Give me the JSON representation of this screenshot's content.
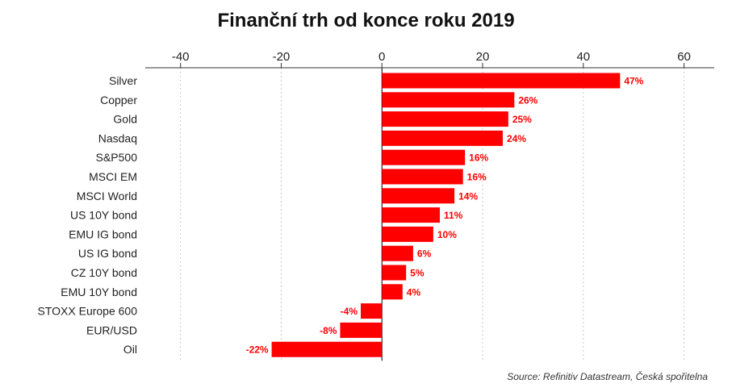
{
  "title": "Finanční trh od konce roku 2019",
  "source": "Source: Refinitiv Datastream, Česká spořitelna",
  "chart_data": {
    "type": "bar",
    "orientation": "horizontal",
    "categories": [
      "Silver",
      "Copper",
      "Gold",
      "Nasdaq",
      "S&P500",
      "MSCI EM",
      "MSCI World",
      "US 10Y bond",
      "EMU IG bond",
      "US IG bond",
      "CZ 10Y bond",
      "EMU 10Y bond",
      "STOXX Europe 600",
      "EUR/USD",
      "Oil"
    ],
    "values": [
      47.3,
      26.3,
      25.1,
      24.0,
      16.5,
      16.1,
      14.4,
      11.5,
      10.2,
      6.2,
      4.8,
      4.1,
      -4.2,
      -8.3,
      -21.9
    ],
    "data_labels": [
      "47%",
      "26%",
      "25%",
      "24%",
      "16%",
      "16%",
      "14%",
      "11%",
      "10%",
      "6%",
      "5%",
      "4%",
      "-4%",
      "-8%",
      "-22%"
    ],
    "xlim": [
      -47,
      66
    ],
    "xticks": [
      -40,
      -20,
      0,
      20,
      40,
      60
    ],
    "tick_labels": [
      "-40",
      "-20",
      "0",
      "20",
      "40",
      "60"
    ],
    "axis_position": "top",
    "grid": "vertical dashed",
    "bar_color": "#ff0000",
    "label_color": "#ff0000"
  }
}
